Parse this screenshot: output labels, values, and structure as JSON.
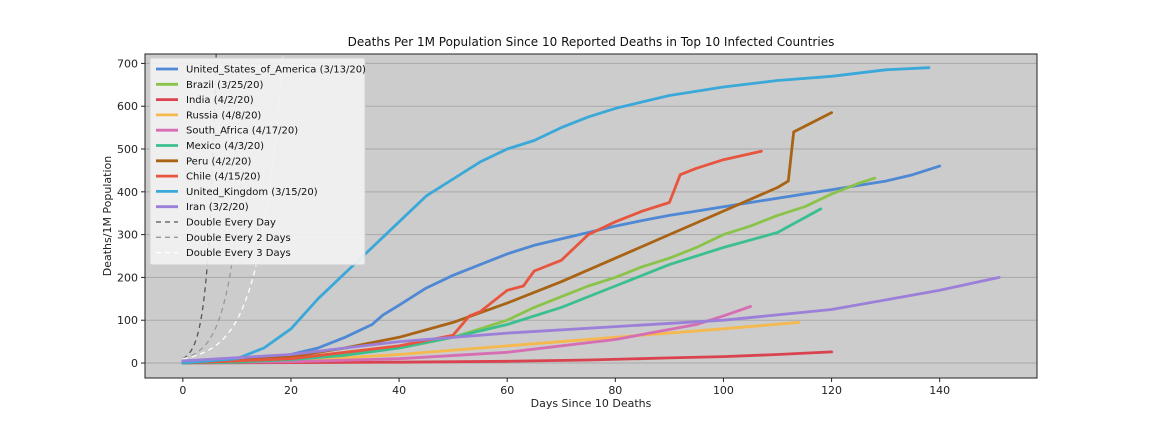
{
  "chart_data": {
    "type": "line",
    "title": "Deaths Per 1M Population Since 10 Reported Deaths in Top 10 Infected Countries",
    "xlabel": "Days Since 10 Deaths",
    "ylabel": "Deaths/1M Population",
    "xlim": [
      -7,
      158
    ],
    "ylim": [
      -35,
      722
    ],
    "xticks": [
      0,
      20,
      40,
      60,
      80,
      100,
      120,
      140
    ],
    "yticks": [
      0,
      100,
      200,
      300,
      400,
      500,
      600,
      700
    ],
    "grid": "horizontal",
    "legend_position": "upper-left",
    "background": "#cccccc",
    "series": [
      {
        "name": "United_States_of_America (3/13/20)",
        "color": "#4f88d4",
        "x": [
          0,
          10,
          20,
          25,
          30,
          35,
          37,
          40,
          45,
          50,
          55,
          60,
          65,
          70,
          75,
          80,
          85,
          90,
          95,
          100,
          105,
          110,
          115,
          120,
          125,
          130,
          135,
          140
        ],
        "y": [
          0,
          5,
          20,
          35,
          60,
          90,
          112,
          135,
          175,
          205,
          230,
          255,
          275,
          290,
          305,
          320,
          333,
          345,
          355,
          365,
          375,
          385,
          395,
          405,
          415,
          425,
          440,
          460
        ]
      },
      {
        "name": "Brazil (3/25/20)",
        "color": "#8bc34a",
        "x": [
          0,
          10,
          20,
          30,
          40,
          50,
          55,
          60,
          65,
          70,
          75,
          80,
          85,
          90,
          95,
          100,
          105,
          110,
          115,
          120,
          125,
          128
        ],
        "y": [
          0,
          3,
          10,
          20,
          35,
          60,
          80,
          100,
          130,
          155,
          180,
          200,
          225,
          245,
          270,
          300,
          320,
          345,
          365,
          395,
          420,
          432
        ]
      },
      {
        "name": "India (4/2/20)",
        "color": "#d9434f",
        "x": [
          0,
          20,
          40,
          60,
          75,
          90,
          100,
          110,
          120
        ],
        "y": [
          0,
          1,
          2,
          4,
          7,
          12,
          15,
          20,
          26
        ]
      },
      {
        "name": "Russia (4/8/20)",
        "color": "#f5b94d",
        "x": [
          0,
          20,
          40,
          60,
          80,
          100,
          114
        ],
        "y": [
          0,
          5,
          20,
          40,
          60,
          80,
          95
        ]
      },
      {
        "name": "South_Africa (4/17/20)",
        "color": "#d66eb4",
        "x": [
          0,
          20,
          40,
          60,
          80,
          95,
          100,
          105
        ],
        "y": [
          0,
          3,
          10,
          25,
          55,
          90,
          110,
          132
        ]
      },
      {
        "name": "Mexico (4/3/20)",
        "color": "#3cbf8f",
        "x": [
          0,
          10,
          20,
          30,
          40,
          50,
          60,
          70,
          80,
          90,
          100,
          110,
          118
        ],
        "y": [
          0,
          2,
          8,
          18,
          35,
          60,
          90,
          130,
          180,
          230,
          270,
          305,
          360
        ]
      },
      {
        "name": "Peru (4/2/20)",
        "color": "#a86414",
        "x": [
          0,
          10,
          20,
          30,
          40,
          50,
          60,
          70,
          80,
          90,
          100,
          110,
          112,
          113,
          120
        ],
        "y": [
          0,
          5,
          15,
          35,
          60,
          95,
          140,
          190,
          245,
          300,
          355,
          410,
          425,
          540,
          585
        ]
      },
      {
        "name": "Chile (4/15/20)",
        "color": "#e8553e",
        "x": [
          0,
          20,
          40,
          50,
          53,
          55,
          60,
          63,
          65,
          70,
          75,
          80,
          85,
          90,
          92,
          95,
          100,
          107
        ],
        "y": [
          0,
          10,
          40,
          65,
          110,
          120,
          170,
          180,
          215,
          240,
          300,
          330,
          355,
          375,
          440,
          455,
          475,
          495
        ]
      },
      {
        "name": "United_Kingdom (3/15/20)",
        "color": "#3aa8d8",
        "x": [
          0,
          10,
          15,
          20,
          25,
          30,
          35,
          40,
          45,
          50,
          55,
          60,
          65,
          70,
          75,
          80,
          85,
          90,
          95,
          100,
          110,
          120,
          130,
          138
        ],
        "y": [
          0,
          10,
          35,
          80,
          150,
          210,
          270,
          330,
          390,
          430,
          470,
          500,
          520,
          550,
          575,
          595,
          610,
          625,
          635,
          645,
          660,
          670,
          685,
          690
        ]
      },
      {
        "name": "Iran (3/2/20)",
        "color": "#9b7fd9",
        "x": [
          0,
          20,
          40,
          60,
          80,
          100,
          120,
          140,
          151
        ],
        "y": [
          5,
          20,
          50,
          70,
          85,
          100,
          125,
          170,
          200
        ]
      }
    ],
    "reference_lines": [
      {
        "name": "Double Every Day",
        "color": "#555555",
        "dash": "5,4",
        "doubling_days": 1
      },
      {
        "name": "Double Every 2 Days",
        "color": "#999999",
        "dash": "5,4",
        "doubling_days": 2
      },
      {
        "name": "Double Every 3 Days",
        "color": "#ffffff",
        "dash": "5,4",
        "doubling_days": 3
      }
    ]
  }
}
